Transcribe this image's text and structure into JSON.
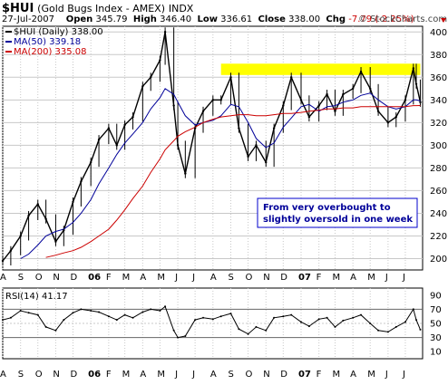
{
  "header": {
    "symbol": "$HUI",
    "name": "(Gold Bugs Index - AMEX)",
    "exchange": "INDX",
    "date": "27-Jul-2007",
    "open_label": "Open",
    "open": "345.79",
    "high_label": "High",
    "high": "346.40",
    "low_label": "Low",
    "low": "336.61",
    "close_label": "Close",
    "close": "338.00",
    "chg_label": "Chg",
    "chg": "-7.79 (-2.25%)",
    "chg_icon": "down-triangle-icon",
    "watermark": "© StockCharts.com"
  },
  "colors": {
    "price": "#000000",
    "ma50": "#000099",
    "ma200": "#cc0000",
    "highlight": "#ffff00",
    "rsi": "#000000",
    "grid": "#c8c8c8",
    "annotation_border": "#0000cc",
    "annotation_text": "#000099"
  },
  "chart_data": [
    {
      "type": "line",
      "title": "$HUI (Gold Bugs Index - AMEX) INDX",
      "legend": [
        {
          "name": "$HUI (Daily)",
          "value": "338.00",
          "color": "#000000"
        },
        {
          "name": "MA(50)",
          "value": "339.18",
          "color": "#000099"
        },
        {
          "name": "MA(200)",
          "value": "335.08",
          "color": "#cc0000"
        }
      ],
      "legend_position": "top-left",
      "ylim": [
        190,
        405
      ],
      "yticks": [
        200,
        220,
        240,
        260,
        280,
        300,
        320,
        340,
        360,
        380,
        400
      ],
      "x_ticks": [
        "A",
        "S",
        "O",
        "N",
        "D",
        "06",
        "F",
        "M",
        "A",
        "M",
        "J",
        "J",
        "A",
        "S",
        "O",
        "N",
        "D",
        "07",
        "F",
        "M",
        "A",
        "M",
        "J",
        "J"
      ],
      "grid": true,
      "x": [
        "2005-08-01",
        "2005-08-15",
        "2005-09-01",
        "2005-09-15",
        "2005-10-01",
        "2005-10-15",
        "2005-11-01",
        "2005-11-15",
        "2005-12-01",
        "2005-12-15",
        "2006-01-01",
        "2006-01-15",
        "2006-02-01",
        "2006-02-15",
        "2006-03-01",
        "2006-03-15",
        "2006-04-01",
        "2006-04-15",
        "2006-05-01",
        "2006-05-10",
        "2006-05-25",
        "2006-06-01",
        "2006-06-14",
        "2006-07-01",
        "2006-07-15",
        "2006-08-01",
        "2006-08-15",
        "2006-09-01",
        "2006-09-15",
        "2006-10-01",
        "2006-10-15",
        "2006-11-01",
        "2006-11-15",
        "2006-12-01",
        "2006-12-15",
        "2007-01-01",
        "2007-01-15",
        "2007-02-01",
        "2007-02-15",
        "2007-03-01",
        "2007-03-15",
        "2007-04-01",
        "2007-04-15",
        "2007-05-01",
        "2007-05-15",
        "2007-06-01",
        "2007-06-15",
        "2007-07-01",
        "2007-07-15",
        "2007-07-20",
        "2007-07-27"
      ],
      "series": [
        {
          "name": "$HUI (Daily)",
          "values": [
            198,
            207,
            220,
            238,
            248,
            235,
            215,
            225,
            250,
            268,
            285,
            305,
            315,
            300,
            318,
            325,
            352,
            360,
            375,
            400,
            335,
            300,
            275,
            315,
            330,
            340,
            340,
            360,
            315,
            290,
            300,
            285,
            315,
            335,
            360,
            340,
            325,
            335,
            345,
            330,
            345,
            350,
            365,
            350,
            330,
            320,
            325,
            340,
            368,
            354,
            338
          ]
        },
        {
          "name": "MA(50)",
          "values": [
            null,
            null,
            200,
            204,
            212,
            220,
            224,
            226,
            232,
            240,
            252,
            266,
            280,
            292,
            302,
            310,
            320,
            332,
            342,
            350,
            345,
            338,
            326,
            318,
            320,
            322,
            326,
            336,
            334,
            320,
            306,
            298,
            302,
            316,
            324,
            334,
            336,
            330,
            334,
            335,
            338,
            340,
            344,
            346,
            340,
            334,
            332,
            334,
            340,
            340,
            339.18
          ]
        },
        {
          "name": "MA(200)",
          "values": [
            null,
            null,
            null,
            null,
            null,
            201,
            203,
            205,
            207,
            210,
            215,
            220,
            226,
            234,
            243,
            253,
            264,
            276,
            288,
            296,
            304,
            308,
            312,
            316,
            320,
            323,
            325,
            326,
            327,
            327,
            326,
            326,
            327,
            328,
            328,
            329,
            330,
            331,
            332,
            332,
            333,
            333,
            334,
            334,
            334,
            334,
            334,
            334,
            335,
            335,
            335.08
          ]
        }
      ],
      "highlight_band": {
        "x_start": "2006-08-15",
        "x_end": "2007-07-27",
        "y_range": [
          362,
          372
        ]
      },
      "annotation": {
        "line1": "From very overbought to",
        "line2": "slightly oversold in one week"
      }
    },
    {
      "type": "line",
      "title": "RSI(14)",
      "legend": [
        {
          "name": "RSI(14)",
          "value": "41.17"
        }
      ],
      "ylim": [
        0,
        100
      ],
      "yticks": [
        10,
        30,
        50,
        70,
        90
      ],
      "ref_lines": [
        30,
        70
      ],
      "x": [
        "2005-08-01",
        "2005-08-15",
        "2005-09-01",
        "2005-09-15",
        "2005-10-01",
        "2005-10-15",
        "2005-11-01",
        "2005-11-15",
        "2005-12-01",
        "2005-12-15",
        "2006-01-01",
        "2006-01-15",
        "2006-02-01",
        "2006-02-15",
        "2006-03-01",
        "2006-03-15",
        "2006-04-01",
        "2006-04-15",
        "2006-05-01",
        "2006-05-10",
        "2006-05-25",
        "2006-06-01",
        "2006-06-14",
        "2006-07-01",
        "2006-07-15",
        "2006-08-01",
        "2006-08-15",
        "2006-09-01",
        "2006-09-15",
        "2006-10-01",
        "2006-10-15",
        "2006-11-01",
        "2006-11-15",
        "2006-12-01",
        "2006-12-15",
        "2007-01-01",
        "2007-01-15",
        "2007-02-01",
        "2007-02-15",
        "2007-03-01",
        "2007-03-15",
        "2007-04-01",
        "2007-04-15",
        "2007-05-01",
        "2007-05-15",
        "2007-06-01",
        "2007-06-15",
        "2007-07-01",
        "2007-07-15",
        "2007-07-20",
        "2007-07-27"
      ],
      "values": [
        55,
        58,
        68,
        65,
        62,
        45,
        40,
        55,
        65,
        70,
        68,
        66,
        60,
        55,
        62,
        58,
        66,
        70,
        68,
        74,
        40,
        30,
        32,
        55,
        58,
        56,
        60,
        64,
        42,
        35,
        45,
        40,
        58,
        60,
        62,
        52,
        46,
        56,
        58,
        45,
        54,
        58,
        62,
        50,
        40,
        38,
        45,
        52,
        70,
        55,
        41.17
      ]
    }
  ]
}
